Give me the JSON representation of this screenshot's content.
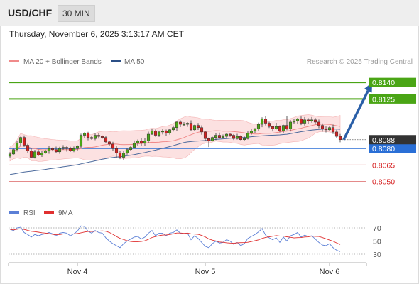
{
  "header": {
    "pair": "USD/CHF",
    "timeframe": "30 MIN"
  },
  "datetime": "Thursday, November 6, 2025 3:13:17 AM CET",
  "legend": [
    {
      "label": "MA 20 + Bollinger Bands",
      "color": "#f08a8a"
    },
    {
      "label": "MA 50",
      "color": "#2b4f86"
    }
  ],
  "rsi_legend": [
    {
      "label": "RSI",
      "color": "#5b7fd6"
    },
    {
      "label": "9MA",
      "color": "#e03030"
    }
  ],
  "credit": "Research © 2025 Trading Central",
  "chart_data": {
    "type": "candlestick",
    "price_range": [
      8033,
      8153
    ],
    "current_price": {
      "value": "0.8088",
      "color": "#333333"
    },
    "levels": [
      {
        "price": 8140,
        "label": "0.8140",
        "kind": "target",
        "color": "#4aa515",
        "bg": "#4aa515",
        "fg": "#ffffff"
      },
      {
        "price": 8125,
        "label": "0.8125",
        "kind": "target",
        "color": "#4aa515",
        "bg": "#4aa515",
        "fg": "#ffffff"
      },
      {
        "price": 8080,
        "label": "0.8080",
        "kind": "pivot",
        "color": "#2a6fd6",
        "bg": "#2a6fd6",
        "fg": "#ffffff"
      },
      {
        "price": 8065,
        "label": "0.8065",
        "kind": "support",
        "color": "#e07a7a",
        "bg": "none",
        "fg": "#d62020"
      },
      {
        "price": 8050,
        "label": "0.8050",
        "kind": "support",
        "color": "#e07a7a",
        "bg": "none",
        "fg": "#d62020"
      }
    ],
    "forecast_arrow": {
      "from": {
        "index": 94,
        "price": 8088
      },
      "to": {
        "index": 102,
        "price": 8140
      },
      "color": "#2a5fa8"
    },
    "x_labels": [
      {
        "label": "Nov 4",
        "index": 19
      },
      {
        "label": "Nov 5",
        "index": 55
      },
      {
        "label": "Nov 6",
        "index": 90
      }
    ],
    "close": [
      8075,
      8079,
      8085,
      8090,
      8083,
      8078,
      8072,
      8077,
      8074,
      8076,
      8078,
      8080,
      8079,
      8077,
      8080,
      8081,
      8080,
      8078,
      8080,
      8082,
      8092,
      8094,
      8090,
      8089,
      8092,
      8091,
      8090,
      8086,
      8084,
      8080,
      8076,
      8072,
      8076,
      8079,
      8081,
      8085,
      8087,
      8085,
      8087,
      8093,
      8096,
      8092,
      8095,
      8096,
      8094,
      8097,
      8099,
      8104,
      8102,
      8102,
      8103,
      8097,
      8101,
      8099,
      8095,
      8089,
      8087,
      8090,
      8092,
      8090,
      8091,
      8093,
      8092,
      8089,
      8091,
      8088,
      8089,
      8094,
      8096,
      8098,
      8102,
      8107,
      8103,
      8100,
      8098,
      8100,
      8096,
      8101,
      8098,
      8104,
      8105,
      8107,
      8103,
      8106,
      8105,
      8106,
      8104,
      8101,
      8098,
      8097,
      8099,
      8095,
      8091,
      8088
    ],
    "series": [
      {
        "name": "MA 20 + Bollinger Bands",
        "color": "#e07a7a"
      },
      {
        "name": "MA 50",
        "color": "#2b4f86"
      }
    ],
    "rsi": {
      "ylim": [
        23,
        80
      ],
      "ticks": [
        70,
        50,
        30
      ],
      "values": [
        68,
        66,
        70,
        71,
        63,
        60,
        56,
        60,
        58,
        60,
        61,
        63,
        61,
        58,
        62,
        63,
        62,
        58,
        61,
        65,
        73,
        72,
        65,
        62,
        66,
        63,
        62,
        55,
        50,
        46,
        43,
        40,
        46,
        50,
        53,
        56,
        57,
        53,
        56,
        62,
        66,
        58,
        62,
        62,
        58,
        62,
        63,
        67,
        62,
        61,
        62,
        52,
        58,
        54,
        48,
        42,
        40,
        46,
        50,
        47,
        48,
        52,
        50,
        45,
        48,
        43,
        46,
        54,
        57,
        60,
        64,
        69,
        59,
        55,
        52,
        55,
        48,
        56,
        50,
        58,
        60,
        63,
        56,
        59,
        57,
        58,
        53,
        48,
        44,
        43,
        46,
        40,
        36,
        34
      ]
    }
  }
}
